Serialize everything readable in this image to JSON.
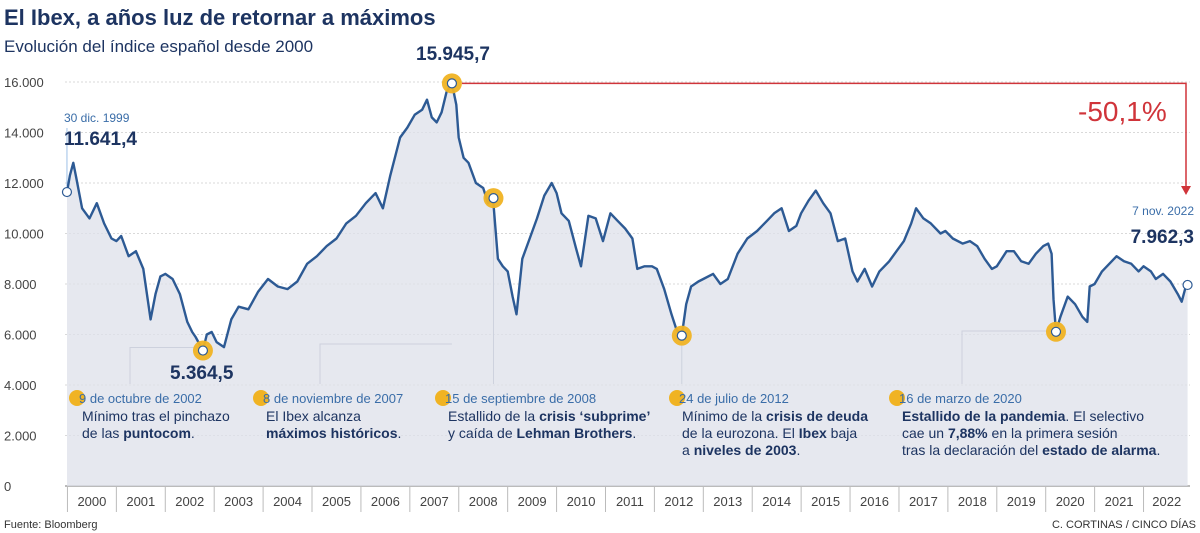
{
  "header": {
    "title": "El Ibex, a años luz de retornar a máximos",
    "subtitle": "Evolución del índice español desde 2000"
  },
  "chart_data": {
    "type": "line",
    "yticks": [
      "16.000",
      "14.000",
      "12.000",
      "10.000",
      "8.000",
      "6.000",
      "4.000",
      "2.000",
      "0"
    ],
    "ylim": [
      0,
      16000
    ],
    "xticks": [
      "2000",
      "2001",
      "2002",
      "2003",
      "2004",
      "2005",
      "2006",
      "2007",
      "2008",
      "2009",
      "2010",
      "2011",
      "2012",
      "2013",
      "2014",
      "2015",
      "2016",
      "2017",
      "2018",
      "2019",
      "2020",
      "2021",
      "2022"
    ],
    "xlim": [
      1999.95,
      2022.95
    ],
    "series": [
      {
        "values": [
          [
            1999.99,
            11641
          ],
          [
            2000.05,
            12300
          ],
          [
            2000.12,
            12800
          ],
          [
            2000.18,
            12200
          ],
          [
            2000.3,
            11000
          ],
          [
            2000.45,
            10600
          ],
          [
            2000.6,
            11200
          ],
          [
            2000.75,
            10400
          ],
          [
            2000.9,
            9800
          ],
          [
            2001.0,
            9700
          ],
          [
            2001.1,
            9900
          ],
          [
            2001.25,
            9100
          ],
          [
            2001.4,
            9300
          ],
          [
            2001.55,
            8600
          ],
          [
            2001.7,
            6600
          ],
          [
            2001.8,
            7600
          ],
          [
            2001.9,
            8300
          ],
          [
            2002.0,
            8400
          ],
          [
            2002.15,
            8200
          ],
          [
            2002.3,
            7600
          ],
          [
            2002.45,
            6500
          ],
          [
            2002.55,
            6100
          ],
          [
            2002.62,
            5900
          ],
          [
            2002.77,
            5364
          ],
          [
            2002.85,
            6000
          ],
          [
            2002.95,
            6100
          ],
          [
            2003.05,
            5700
          ],
          [
            2003.2,
            5500
          ],
          [
            2003.35,
            6600
          ],
          [
            2003.5,
            7100
          ],
          [
            2003.7,
            7000
          ],
          [
            2003.9,
            7700
          ],
          [
            2004.1,
            8200
          ],
          [
            2004.3,
            7900
          ],
          [
            2004.5,
            7800
          ],
          [
            2004.7,
            8100
          ],
          [
            2004.9,
            8800
          ],
          [
            2005.1,
            9100
          ],
          [
            2005.3,
            9500
          ],
          [
            2005.5,
            9800
          ],
          [
            2005.7,
            10400
          ],
          [
            2005.9,
            10700
          ],
          [
            2006.1,
            11200
          ],
          [
            2006.3,
            11600
          ],
          [
            2006.45,
            11000
          ],
          [
            2006.6,
            12300
          ],
          [
            2006.8,
            13800
          ],
          [
            2006.95,
            14200
          ],
          [
            2007.1,
            14700
          ],
          [
            2007.25,
            14900
          ],
          [
            2007.35,
            15300
          ],
          [
            2007.45,
            14600
          ],
          [
            2007.55,
            14400
          ],
          [
            2007.65,
            14800
          ],
          [
            2007.75,
            15600
          ],
          [
            2007.86,
            15945
          ],
          [
            2007.95,
            15100
          ],
          [
            2008.0,
            13800
          ],
          [
            2008.1,
            13000
          ],
          [
            2008.2,
            12800
          ],
          [
            2008.35,
            12000
          ],
          [
            2008.5,
            11800
          ],
          [
            2008.6,
            11200
          ],
          [
            2008.7,
            11400
          ],
          [
            2008.8,
            9000
          ],
          [
            2008.9,
            8700
          ],
          [
            2009.0,
            8500
          ],
          [
            2009.1,
            7500
          ],
          [
            2009.18,
            6800
          ],
          [
            2009.3,
            9000
          ],
          [
            2009.45,
            9800
          ],
          [
            2009.6,
            10600
          ],
          [
            2009.75,
            11500
          ],
          [
            2009.9,
            12000
          ],
          [
            2010.0,
            11600
          ],
          [
            2010.1,
            10800
          ],
          [
            2010.25,
            10500
          ],
          [
            2010.4,
            9400
          ],
          [
            2010.5,
            8700
          ],
          [
            2010.65,
            10700
          ],
          [
            2010.8,
            10600
          ],
          [
            2010.95,
            9700
          ],
          [
            2011.1,
            10800
          ],
          [
            2011.25,
            10500
          ],
          [
            2011.4,
            10200
          ],
          [
            2011.55,
            9800
          ],
          [
            2011.65,
            8600
          ],
          [
            2011.8,
            8700
          ],
          [
            2011.95,
            8700
          ],
          [
            2012.05,
            8600
          ],
          [
            2012.2,
            7800
          ],
          [
            2012.35,
            6800
          ],
          [
            2012.45,
            6200
          ],
          [
            2012.56,
            5956
          ],
          [
            2012.65,
            7200
          ],
          [
            2012.75,
            7900
          ],
          [
            2012.9,
            8100
          ],
          [
            2013.0,
            8200
          ],
          [
            2013.2,
            8400
          ],
          [
            2013.35,
            8000
          ],
          [
            2013.5,
            8200
          ],
          [
            2013.7,
            9200
          ],
          [
            2013.9,
            9800
          ],
          [
            2014.1,
            10100
          ],
          [
            2014.3,
            10500
          ],
          [
            2014.45,
            10800
          ],
          [
            2014.6,
            11000
          ],
          [
            2014.75,
            10100
          ],
          [
            2014.9,
            10300
          ],
          [
            2015.0,
            10800
          ],
          [
            2015.15,
            11300
          ],
          [
            2015.3,
            11700
          ],
          [
            2015.45,
            11200
          ],
          [
            2015.6,
            10800
          ],
          [
            2015.75,
            9700
          ],
          [
            2015.9,
            9800
          ],
          [
            2016.05,
            8500
          ],
          [
            2016.15,
            8100
          ],
          [
            2016.3,
            8600
          ],
          [
            2016.45,
            7900
          ],
          [
            2016.6,
            8500
          ],
          [
            2016.8,
            8900
          ],
          [
            2016.95,
            9300
          ],
          [
            2017.1,
            9700
          ],
          [
            2017.25,
            10400
          ],
          [
            2017.35,
            11000
          ],
          [
            2017.5,
            10600
          ],
          [
            2017.65,
            10400
          ],
          [
            2017.85,
            10000
          ],
          [
            2017.95,
            10100
          ],
          [
            2018.1,
            9800
          ],
          [
            2018.3,
            9600
          ],
          [
            2018.45,
            9700
          ],
          [
            2018.6,
            9500
          ],
          [
            2018.75,
            9000
          ],
          [
            2018.9,
            8600
          ],
          [
            2019.0,
            8700
          ],
          [
            2019.2,
            9300
          ],
          [
            2019.35,
            9300
          ],
          [
            2019.5,
            8900
          ],
          [
            2019.65,
            8800
          ],
          [
            2019.8,
            9200
          ],
          [
            2019.95,
            9500
          ],
          [
            2020.05,
            9600
          ],
          [
            2020.12,
            9200
          ],
          [
            2020.16,
            7400
          ],
          [
            2020.21,
            6107
          ],
          [
            2020.3,
            6700
          ],
          [
            2020.45,
            7500
          ],
          [
            2020.6,
            7200
          ],
          [
            2020.75,
            6700
          ],
          [
            2020.85,
            6500
          ],
          [
            2020.9,
            7900
          ],
          [
            2021.0,
            8000
          ],
          [
            2021.15,
            8500
          ],
          [
            2021.3,
            8800
          ],
          [
            2021.45,
            9100
          ],
          [
            2021.6,
            8900
          ],
          [
            2021.75,
            8800
          ],
          [
            2021.9,
            8500
          ],
          [
            2022.0,
            8700
          ],
          [
            2022.15,
            8500
          ],
          [
            2022.25,
            8200
          ],
          [
            2022.4,
            8400
          ],
          [
            2022.55,
            8100
          ],
          [
            2022.7,
            7600
          ],
          [
            2022.78,
            7300
          ],
          [
            2022.85,
            7800
          ],
          [
            2022.9,
            7962
          ]
        ]
      }
    ]
  },
  "annotations": {
    "start": {
      "date": "30 dic. 1999",
      "value": "11.641,4",
      "x": 1999.99,
      "y": 11641.4
    },
    "min2002": {
      "value": "5.364,5",
      "x": 2002.77,
      "y": 5364.5
    },
    "max2007": {
      "value": "15.945,7",
      "x": 2007.86,
      "y": 15945.7
    },
    "end": {
      "date": "7 nov. 2022",
      "value": "7.962,3",
      "x": 2022.9,
      "y": 7962.3
    },
    "drop": "-50,1%"
  },
  "events": [
    {
      "marker_x": 2002.77,
      "marker_y": 5364.5,
      "date": "9 de octubre de 2002",
      "lines": [
        [
          "Mínimo tras el pinchazo",
          ""
        ],
        [
          "de las ",
          "puntocom",
          "."
        ]
      ]
    },
    {
      "marker_x": 2007.86,
      "marker_y": 15945.7,
      "date": "8 de noviembre de 2007",
      "lines": [
        [
          "El Ibex alcanza",
          ""
        ],
        [
          "",
          "máximos históricos",
          "."
        ]
      ]
    },
    {
      "marker_x": 2008.71,
      "marker_y": 11400,
      "date": "15 de septiembre de 2008",
      "lines": [
        [
          "Estallido de la ",
          "crisis ‘subprime’"
        ],
        [
          "y caída de ",
          "Lehman Brothers",
          "."
        ]
      ]
    },
    {
      "marker_x": 2012.56,
      "marker_y": 5956,
      "date": "24 de julio de 2012",
      "lines": [
        [
          "Mínimo de la ",
          "crisis de deuda"
        ],
        [
          "de la eurozona. El ",
          "Ibex",
          " baja"
        ],
        [
          "a ",
          "niveles de 2003",
          "."
        ]
      ]
    },
    {
      "marker_x": 2020.21,
      "marker_y": 6107,
      "date": "16 de marzo de 2020",
      "lines": [
        [
          "",
          "Estallido de la pandemia",
          ". El selectivo"
        ],
        [
          "cae un ",
          "7,88%",
          " en la primera sesión"
        ],
        [
          "tras la declaración del ",
          "estado de alarma",
          "."
        ]
      ]
    }
  ],
  "footer": {
    "source": "Fuente: Bloomberg",
    "credit": "C. CORTINAS / CINCO DÍAS"
  },
  "colors": {
    "line": "#2d5a94",
    "fill": "#dde0ea",
    "marker": "#f0b323",
    "drop": "#d0343a",
    "leader": "#9aa3b8"
  }
}
